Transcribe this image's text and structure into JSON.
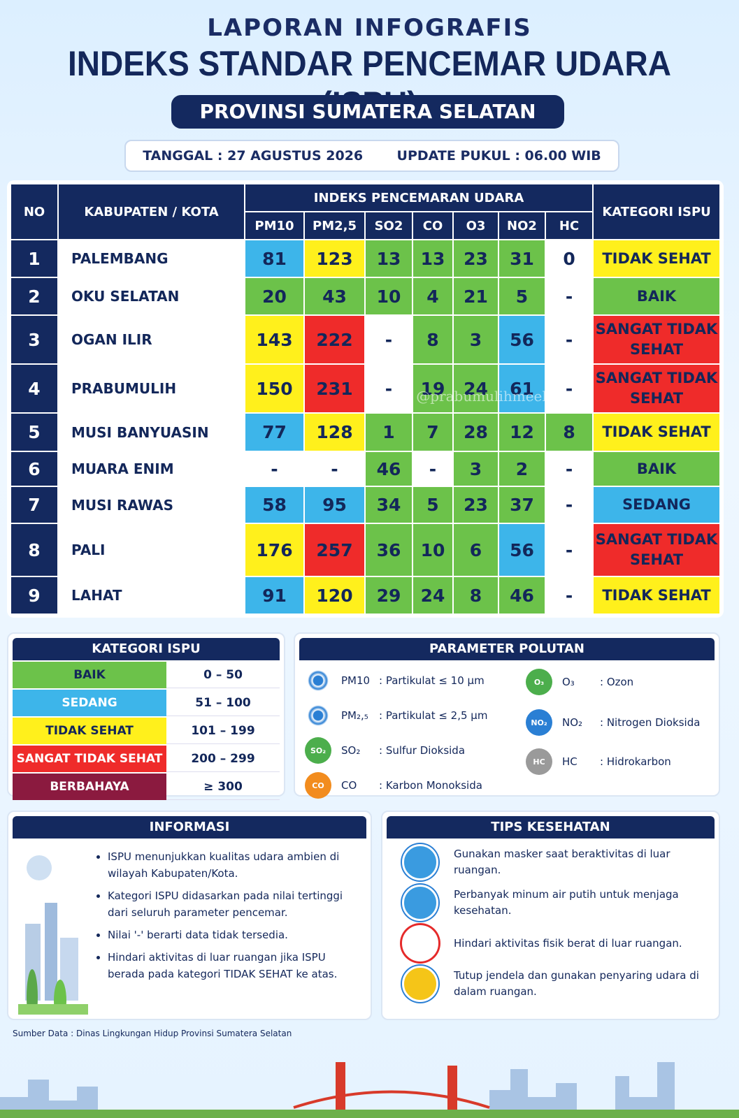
{
  "header": {
    "kicker": "LAPORAN INFOGRAFIS",
    "title": "INDEKS STANDAR PENCEMAR UDARA (ISPU)",
    "province": "PROVINSI SUMATERA SELATAN",
    "date": "TANGGAL : 27 AGUSTUS 2026",
    "update": "UPDATE PUKUL : 06.00 WIB"
  },
  "table": {
    "no": "NO",
    "region": "KABUPATEN / KOTA",
    "group": "INDEKS PENCEMARAN UDARA",
    "category": "KATEGORI ISPU",
    "params": [
      "PM10",
      "PM2,5",
      "SO2",
      "CO",
      "O3",
      "NO2",
      "HC"
    ],
    "watermark": "IG @prabumulihmeehits",
    "rows": [
      {
        "no": 1,
        "region": "PALEMBANG",
        "values": [
          81,
          123,
          13,
          13,
          23,
          31,
          0
        ],
        "colors": [
          "#3db5ea",
          "#fff01c",
          "#6cc24a",
          "#6cc24a",
          "#6cc24a",
          "#6cc24a",
          "#ffffff"
        ],
        "category": "TIDAK SEHAT",
        "category_color": "#fff01c"
      },
      {
        "no": 2,
        "region": "OKU SELATAN",
        "values": [
          20,
          43,
          10,
          4,
          21,
          5,
          "-"
        ],
        "colors": [
          "#6cc24a",
          "#6cc24a",
          "#6cc24a",
          "#6cc24a",
          "#6cc24a",
          "#6cc24a",
          "#ffffff"
        ],
        "category": "BAIK",
        "category_color": "#6cc24a"
      },
      {
        "no": 3,
        "region": "OGAN ILIR",
        "values": [
          143,
          222,
          "-",
          8,
          3,
          56,
          "-"
        ],
        "colors": [
          "#fff01c",
          "#ef2b2a",
          "#ffffff",
          "#6cc24a",
          "#6cc24a",
          "#3db5ea",
          "#ffffff"
        ],
        "category": "SANGAT TIDAK SEHAT",
        "category_color": "#ef2b2a"
      },
      {
        "no": 4,
        "region": "PRABUMULIH",
        "values": [
          150,
          231,
          "-",
          19,
          24,
          61,
          "-"
        ],
        "colors": [
          "#fff01c",
          "#ef2b2a",
          "#ffffff",
          "#6cc24a",
          "#6cc24a",
          "#3db5ea",
          "#ffffff"
        ],
        "category": "SANGAT TIDAK SEHAT",
        "category_color": "#ef2b2a"
      },
      {
        "no": 5,
        "region": "MUSI BANYUASIN",
        "values": [
          77,
          128,
          1,
          7,
          28,
          12,
          8
        ],
        "colors": [
          "#3db5ea",
          "#fff01c",
          "#6cc24a",
          "#6cc24a",
          "#6cc24a",
          "#6cc24a",
          "#6cc24a"
        ],
        "category": "TIDAK SEHAT",
        "category_color": "#fff01c"
      },
      {
        "no": 6,
        "region": "MUARA ENIM",
        "values": [
          "-",
          "-",
          46,
          "-",
          3,
          2,
          "-"
        ],
        "colors": [
          "#ffffff",
          "#ffffff",
          "#6cc24a",
          "#ffffff",
          "#6cc24a",
          "#6cc24a",
          "#ffffff"
        ],
        "category": "BAIK",
        "category_color": "#6cc24a"
      },
      {
        "no": 7,
        "region": "MUSI RAWAS",
        "values": [
          58,
          95,
          34,
          5,
          23,
          37,
          "-"
        ],
        "colors": [
          "#3db5ea",
          "#3db5ea",
          "#6cc24a",
          "#6cc24a",
          "#6cc24a",
          "#6cc24a",
          "#ffffff"
        ],
        "category": "SEDANG",
        "category_color": "#3db5ea"
      },
      {
        "no": 8,
        "region": "PALI",
        "values": [
          176,
          257,
          36,
          10,
          6,
          56,
          "-"
        ],
        "colors": [
          "#fff01c",
          "#ef2b2a",
          "#6cc24a",
          "#6cc24a",
          "#6cc24a",
          "#3db5ea",
          "#ffffff"
        ],
        "category": "SANGAT TIDAK SEHAT",
        "category_color": "#ef2b2a"
      },
      {
        "no": 9,
        "region": "LAHAT",
        "values": [
          91,
          120,
          29,
          24,
          8,
          46,
          "-"
        ],
        "colors": [
          "#3db5ea",
          "#fff01c",
          "#6cc24a",
          "#6cc24a",
          "#6cc24a",
          "#6cc24a",
          "#ffffff"
        ],
        "category": "TIDAK SEHAT",
        "category_color": "#fff01c"
      }
    ]
  },
  "categories": {
    "title": "KATEGORI ISPU",
    "items": [
      {
        "label": "BAIK",
        "range": "0 – 50",
        "color": "#6cc24a"
      },
      {
        "label": "SEDANG",
        "range": "51 – 100",
        "color": "#3db5ea"
      },
      {
        "label": "TIDAK SEHAT",
        "range": "101 – 199",
        "color": "#fff01c"
      },
      {
        "label": "SANGAT TIDAK SEHAT",
        "range": "200 – 299",
        "color": "#ef2b2a"
      },
      {
        "label": "BERBAHAYA",
        "range": "≥ 300",
        "color": "#8b1a3f"
      }
    ]
  },
  "pollutants": {
    "title": "PARAMETER POLUTAN",
    "items": [
      {
        "name": "PM10",
        "desc": ": Partikulat ≤ 10 μm",
        "color": "#2a7fd4"
      },
      {
        "name": "PM₂,₅",
        "desc": ": Partikulat ≤ 2,5 μm",
        "color": "#2a7fd4"
      },
      {
        "icon": "SO₂",
        "name": "SO₂",
        "desc": ": Sulfur Dioksida",
        "color": "#4cae4c"
      },
      {
        "icon": "CO",
        "name": "CO",
        "desc": ": Karbon Monoksida",
        "color": "#f28c1e"
      },
      {
        "icon": "O₃",
        "name": "O₃",
        "desc": ": Ozon",
        "color": "#4cae4c"
      },
      {
        "icon": "NO₂",
        "name": "NO₂",
        "desc": ": Nitrogen Dioksida",
        "color": "#2a7fd4"
      },
      {
        "icon": "HC",
        "name": "HC",
        "desc": ": Hidrokarbon",
        "color": "#9a9a9a"
      }
    ]
  },
  "info": {
    "title": "INFORMASI",
    "items": [
      "ISPU menunjukkan kualitas udara ambien di wilayah Kabupaten/Kota.",
      "Kategori ISPU didasarkan pada nilai tertinggi dari seluruh parameter pencemar.",
      "Nilai '-' berarti data tidak tersedia.",
      "Hindari aktivitas di luar ruangan jika ISPU berada pada kategori TIDAK SEHAT ke atas."
    ]
  },
  "tips": {
    "title": "TIPS KESEHATAN",
    "items": [
      "Gunakan masker saat beraktivitas di luar ruangan.",
      "Perbanyak minum air putih untuk menjaga kesehatan.",
      "Hindari aktivitas fisik berat di luar ruangan.",
      "Tutup jendela dan gunakan penyaring udara di dalam ruangan."
    ]
  },
  "footer": {
    "source": "Sumber Data : Dinas Lingkungan Hidup Provinsi Sumatera Selatan"
  }
}
